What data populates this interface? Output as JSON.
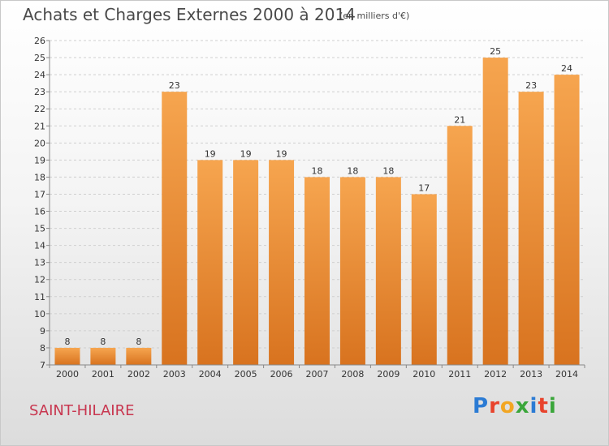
{
  "title": "Achats et Charges Externes 2000 à 2014",
  "subtitle": "(en milliers d'€)",
  "place": "SAINT-HILAIRE",
  "logo": {
    "text": "Proxiti",
    "colors": [
      "#2b7bd4",
      "#e8432c",
      "#f2a623",
      "#3aa63a",
      "#2b7bd4",
      "#e8432c",
      "#3aa63a"
    ]
  },
  "colors": {
    "bar_top": "#f6a54f",
    "bar_bottom": "#d8731f",
    "grid": "#cfcfcf"
  },
  "chart_data": {
    "type": "bar",
    "title": "Achats et Charges Externes 2000 à 2014",
    "subtitle": "(en milliers d'€)",
    "categories": [
      "2000",
      "2001",
      "2002",
      "2003",
      "2004",
      "2005",
      "2006",
      "2007",
      "2008",
      "2009",
      "2010",
      "2011",
      "2012",
      "2013",
      "2014"
    ],
    "values": [
      8,
      8,
      8,
      23,
      19,
      19,
      19,
      18,
      18,
      18,
      17,
      21,
      25,
      23,
      24
    ],
    "ylim": [
      7,
      26
    ],
    "yticks": [
      7,
      8,
      9,
      10,
      11,
      12,
      13,
      14,
      15,
      16,
      17,
      18,
      19,
      20,
      21,
      22,
      23,
      24,
      25,
      26
    ],
    "grid": true,
    "data_labels": true
  }
}
